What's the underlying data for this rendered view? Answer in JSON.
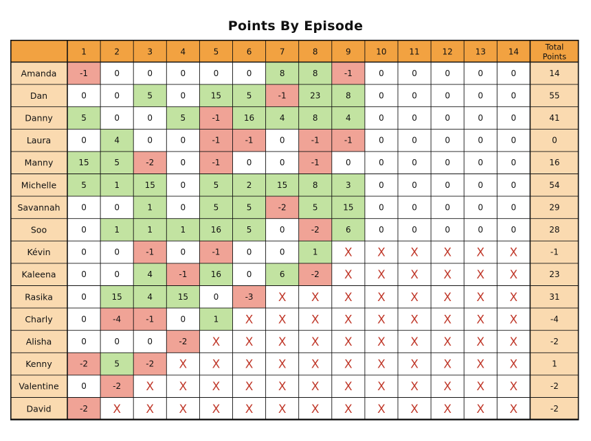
{
  "chart_data": {
    "type": "table",
    "title": "Points By Episode",
    "episodes": [
      "1",
      "2",
      "3",
      "4",
      "5",
      "6",
      "7",
      "8",
      "9",
      "10",
      "11",
      "12",
      "13",
      "14"
    ],
    "total_header": [
      "Total",
      "Points"
    ],
    "eliminated_mark": "X",
    "colors": {
      "header": "#f2a241",
      "name_cell": "#fadab0",
      "positive": "#c2e3a1",
      "negative": "#f0a396",
      "neutral": "#ffffff",
      "eliminated": "#c0392b",
      "border": "#111111"
    },
    "rows": [
      {
        "name": "Amanda",
        "scores": [
          -1,
          0,
          0,
          0,
          0,
          0,
          8,
          8,
          -1,
          0,
          0,
          0,
          0,
          0
        ],
        "total": 14
      },
      {
        "name": "Dan",
        "scores": [
          0,
          0,
          5,
          0,
          15,
          5,
          -1,
          23,
          8,
          0,
          0,
          0,
          0,
          0
        ],
        "total": 55
      },
      {
        "name": "Danny",
        "scores": [
          5,
          0,
          0,
          5,
          -1,
          16,
          4,
          8,
          4,
          0,
          0,
          0,
          0,
          0
        ],
        "total": 41
      },
      {
        "name": "Laura",
        "scores": [
          0,
          4,
          0,
          0,
          -1,
          -1,
          0,
          -1,
          -1,
          0,
          0,
          0,
          0,
          0
        ],
        "total": 0
      },
      {
        "name": "Manny",
        "scores": [
          15,
          5,
          -2,
          0,
          -1,
          0,
          0,
          -1,
          0,
          0,
          0,
          0,
          0,
          0
        ],
        "total": 16
      },
      {
        "name": "Michelle",
        "scores": [
          5,
          1,
          15,
          0,
          5,
          2,
          15,
          8,
          3,
          0,
          0,
          0,
          0,
          0
        ],
        "total": 54
      },
      {
        "name": "Savannah",
        "scores": [
          0,
          0,
          1,
          0,
          5,
          5,
          -2,
          5,
          15,
          0,
          0,
          0,
          0,
          0
        ],
        "total": 29
      },
      {
        "name": "Soo",
        "scores": [
          0,
          1,
          1,
          1,
          16,
          5,
          0,
          -2,
          6,
          0,
          0,
          0,
          0,
          0
        ],
        "total": 28
      },
      {
        "name": "Kévin",
        "scores": [
          0,
          0,
          -1,
          0,
          -1,
          0,
          0,
          1,
          null,
          null,
          null,
          null,
          null,
          null
        ],
        "total": -1
      },
      {
        "name": "Kaleena",
        "scores": [
          0,
          0,
          4,
          -1,
          16,
          0,
          6,
          -2,
          null,
          null,
          null,
          null,
          null,
          null
        ],
        "total": 23
      },
      {
        "name": "Rasika",
        "scores": [
          0,
          15,
          4,
          15,
          0,
          -3,
          null,
          null,
          null,
          null,
          null,
          null,
          null,
          null
        ],
        "total": 31
      },
      {
        "name": "Charly",
        "scores": [
          0,
          -4,
          -1,
          0,
          1,
          null,
          null,
          null,
          null,
          null,
          null,
          null,
          null,
          null
        ],
        "total": -4
      },
      {
        "name": "Alisha",
        "scores": [
          0,
          0,
          0,
          -2,
          null,
          null,
          null,
          null,
          null,
          null,
          null,
          null,
          null,
          null
        ],
        "total": -2
      },
      {
        "name": "Kenny",
        "scores": [
          -2,
          5,
          -2,
          null,
          null,
          null,
          null,
          null,
          null,
          null,
          null,
          null,
          null,
          null
        ],
        "total": 1
      },
      {
        "name": "Valentine",
        "scores": [
          0,
          -2,
          null,
          null,
          null,
          null,
          null,
          null,
          null,
          null,
          null,
          null,
          null,
          null
        ],
        "total": -2
      },
      {
        "name": "David",
        "scores": [
          -2,
          null,
          null,
          null,
          null,
          null,
          null,
          null,
          null,
          null,
          null,
          null,
          null,
          null
        ],
        "total": -2
      }
    ]
  }
}
